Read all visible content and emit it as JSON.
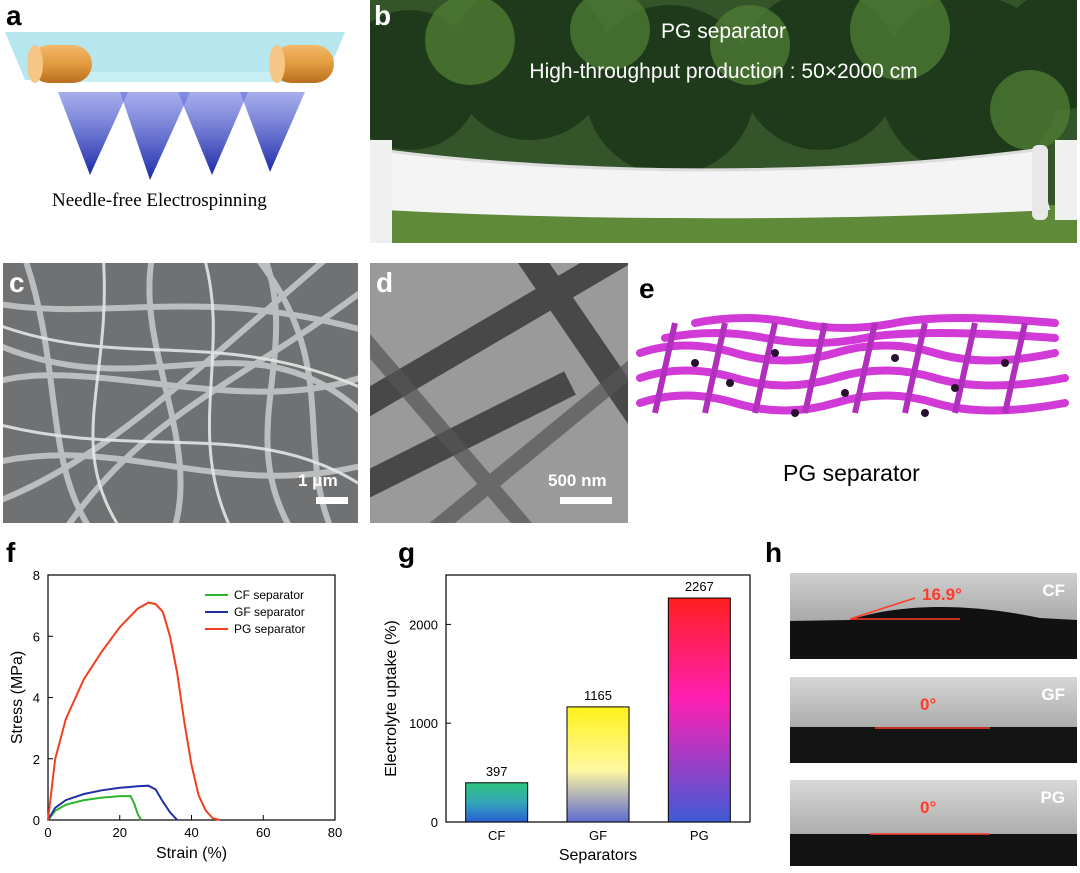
{
  "panels": {
    "a": {
      "label": "a",
      "caption": "Needle-free Electrospinning"
    },
    "b": {
      "label": "b",
      "title": "PG separator",
      "subtitle": "High-throughput production : 50×2000 cm"
    },
    "c": {
      "label": "c",
      "scale_bar": "1 μm"
    },
    "d": {
      "label": "d",
      "scale_bar": "500 nm"
    },
    "e": {
      "label": "e",
      "caption": "PG separator"
    },
    "f": {
      "label": "f"
    },
    "g": {
      "label": "g"
    },
    "h": {
      "label": "h",
      "images": [
        {
          "name": "CF",
          "angle": "16.9°"
        },
        {
          "name": "GF",
          "angle": "0°"
        },
        {
          "name": "PG",
          "angle": "0°"
        }
      ]
    }
  },
  "chart_data": [
    {
      "type": "line",
      "panel": "f",
      "title": "",
      "xlabel": "Strain (%)",
      "ylabel": "Stress (MPa)",
      "xlim": [
        0,
        80
      ],
      "ylim": [
        0,
        8
      ],
      "xticks": [
        0,
        20,
        40,
        60,
        80
      ],
      "yticks": [
        0,
        2,
        4,
        6,
        8
      ],
      "legend_position": "top-right",
      "series": [
        {
          "name": "CF separator",
          "color": "#2db52d",
          "x": [
            0,
            2,
            5,
            10,
            15,
            20,
            23,
            24,
            25,
            26
          ],
          "y": [
            0,
            0.3,
            0.5,
            0.65,
            0.73,
            0.78,
            0.78,
            0.55,
            0.2,
            0
          ]
        },
        {
          "name": "GF separator",
          "color": "#1f2fa8",
          "x": [
            0,
            2,
            5,
            10,
            15,
            20,
            25,
            28,
            30,
            32,
            34,
            36
          ],
          "y": [
            0,
            0.4,
            0.65,
            0.85,
            0.97,
            1.05,
            1.1,
            1.12,
            1.0,
            0.6,
            0.25,
            0
          ]
        },
        {
          "name": "PG separator",
          "color": "#f0401e",
          "x": [
            0,
            2,
            5,
            10,
            15,
            20,
            25,
            28,
            30,
            32,
            34,
            36,
            38,
            40,
            42,
            44,
            46,
            48
          ],
          "y": [
            0,
            2.0,
            3.3,
            4.6,
            5.5,
            6.3,
            6.9,
            7.1,
            7.05,
            6.8,
            6.0,
            4.8,
            3.2,
            1.8,
            0.8,
            0.3,
            0.05,
            0
          ]
        }
      ]
    },
    {
      "type": "bar",
      "panel": "g",
      "title": "",
      "xlabel": "Separators",
      "ylabel": "Electrolyte uptake (%)",
      "categories": [
        "CF",
        "GF",
        "PG"
      ],
      "values": [
        397,
        1165,
        2267
      ],
      "data_labels": [
        "397",
        "1165",
        "2267"
      ],
      "ylim": [
        0,
        2500
      ],
      "yticks": [
        0,
        1000,
        2000
      ]
    }
  ]
}
